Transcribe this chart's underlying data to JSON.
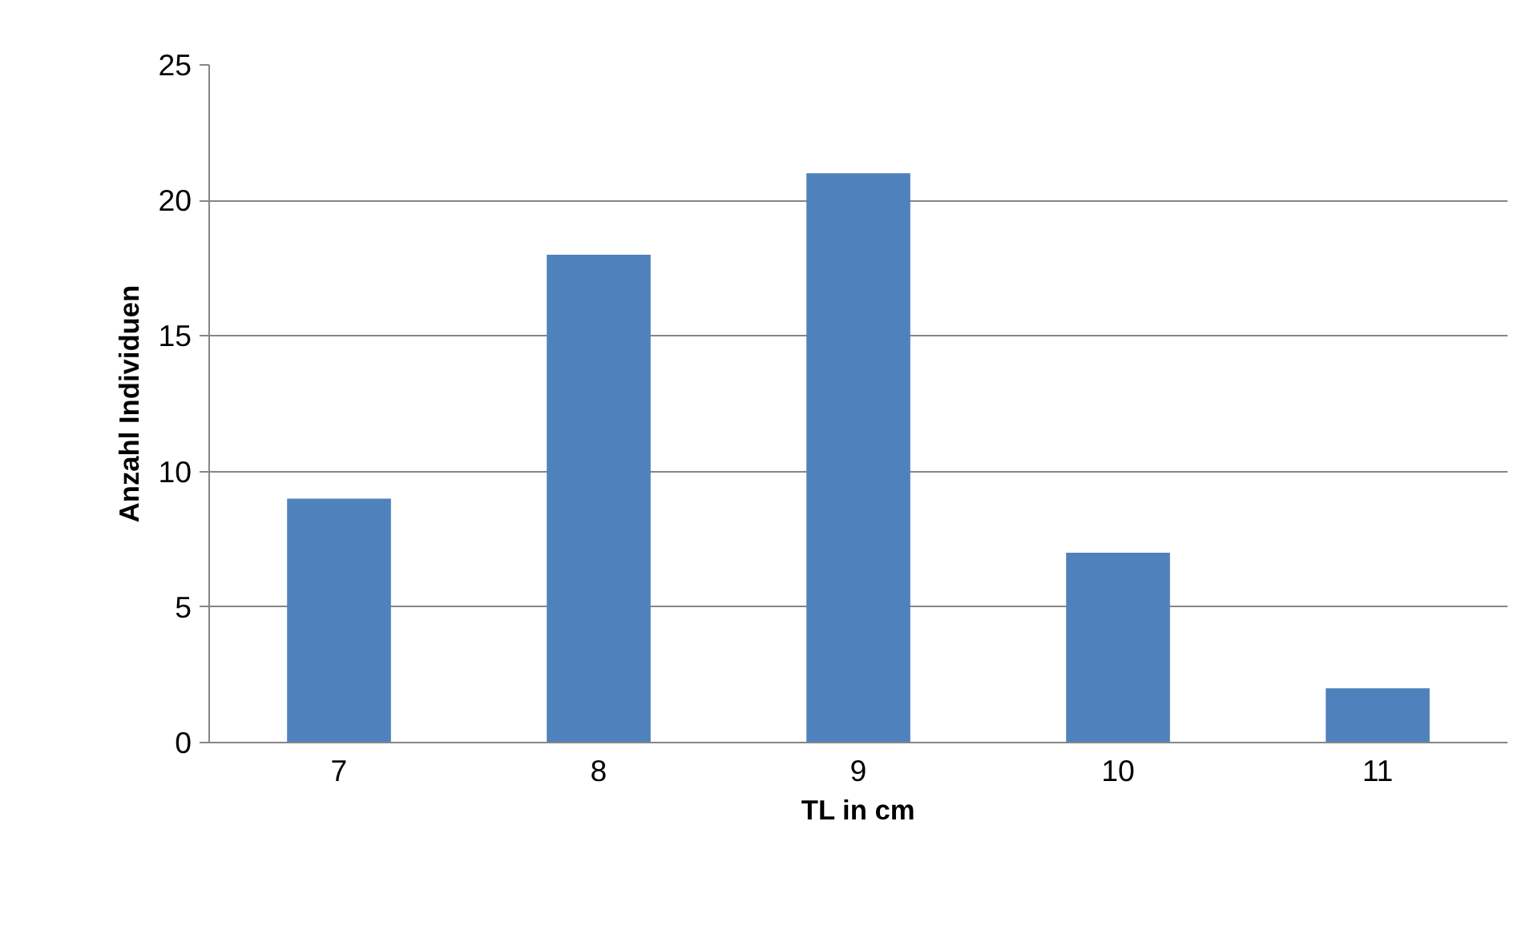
{
  "chart_data": {
    "type": "bar",
    "xlabel": "TL in cm",
    "ylabel": "Anzahl Individuen",
    "categories": [
      "7",
      "8",
      "9",
      "10",
      "11"
    ],
    "values": [
      9,
      18,
      21,
      7,
      2
    ],
    "color": "#4f81bd",
    "ylim": [
      0,
      25
    ],
    "yticks": [
      0,
      5,
      10,
      15,
      20,
      25
    ],
    "grid": "y"
  }
}
